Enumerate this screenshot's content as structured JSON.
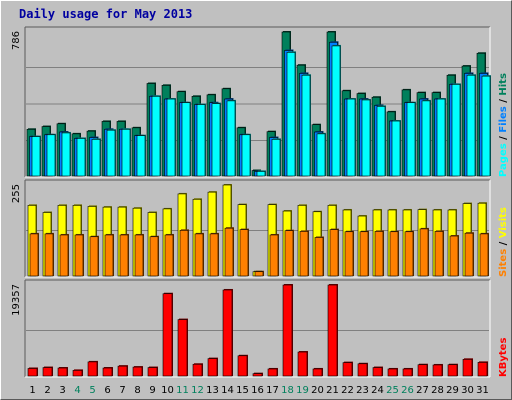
{
  "title": "Daily usage for May 2013",
  "colors": {
    "hits": "#00805c",
    "files": "#0080ff",
    "pages": "#00ffff",
    "visits": "#ffff00",
    "sites": "#ff8000",
    "kbytes": "#ff0000",
    "weekend_label": "#00805c",
    "weekday_label": "#000000",
    "title": "#0000a0",
    "panel_bg": "#c0c0c0"
  },
  "chart_data": [
    {
      "type": "bar",
      "ylabel_max": "786",
      "ylim": [
        0,
        786
      ],
      "legend_right": [
        "Pages",
        "/",
        "Files",
        "/",
        "Hits"
      ],
      "categories": [
        "1",
        "2",
        "3",
        "4",
        "5",
        "6",
        "7",
        "8",
        "9",
        "10",
        "11",
        "12",
        "13",
        "14",
        "15",
        "16",
        "17",
        "18",
        "19",
        "20",
        "21",
        "22",
        "23",
        "24",
        "25",
        "26",
        "27",
        "28",
        "29",
        "30",
        "31"
      ],
      "series": [
        {
          "name": "Hits",
          "values": [
            255,
            270,
            285,
            230,
            245,
            298,
            298,
            263,
            505,
            495,
            460,
            435,
            443,
            476,
            263,
            30,
            242,
            786,
            605,
            280,
            786,
            465,
            450,
            430,
            350,
            470,
            455,
            455,
            550,
            600,
            670
          ]
        },
        {
          "name": "Files",
          "values": [
            215,
            225,
            240,
            205,
            210,
            255,
            255,
            220,
            435,
            420,
            400,
            390,
            400,
            420,
            225,
            25,
            210,
            685,
            560,
            240,
            730,
            420,
            420,
            385,
            300,
            400,
            420,
            420,
            500,
            560,
            560
          ]
        },
        {
          "name": "Pages",
          "values": [
            215,
            225,
            235,
            205,
            200,
            250,
            255,
            220,
            435,
            420,
            400,
            390,
            395,
            410,
            225,
            25,
            200,
            675,
            550,
            230,
            710,
            420,
            415,
            380,
            300,
            400,
            410,
            420,
            500,
            550,
            545
          ]
        }
      ]
    },
    {
      "type": "bar",
      "ylabel_max": "255",
      "ylim": [
        0,
        255
      ],
      "legend_right": [
        "Sites",
        "/",
        "Visits"
      ],
      "categories": [
        "1",
        "2",
        "3",
        "4",
        "5",
        "6",
        "7",
        "8",
        "9",
        "10",
        "11",
        "12",
        "13",
        "14",
        "15",
        "16",
        "17",
        "18",
        "19",
        "20",
        "21",
        "22",
        "23",
        "24",
        "25",
        "26",
        "27",
        "28",
        "29",
        "30",
        "31"
      ],
      "series": [
        {
          "name": "Visits",
          "values": [
            198,
            178,
            198,
            198,
            195,
            193,
            193,
            190,
            178,
            188,
            230,
            215,
            235,
            255,
            200,
            12,
            200,
            182,
            198,
            180,
            198,
            185,
            168,
            185,
            185,
            185,
            186,
            185,
            185,
            203,
            204
          ]
        },
        {
          "name": "Sites",
          "values": [
            118,
            118,
            115,
            115,
            110,
            115,
            115,
            115,
            110,
            115,
            128,
            118,
            118,
            134,
            130,
            12,
            115,
            127,
            125,
            108,
            130,
            124,
            124,
            125,
            124,
            124,
            132,
            125,
            112,
            120,
            118
          ]
        }
      ]
    },
    {
      "type": "bar",
      "ylabel_max": "19357",
      "ylim": [
        0,
        19357
      ],
      "legend_right": [
        "KBytes"
      ],
      "categories": [
        "1",
        "2",
        "3",
        "4",
        "5",
        "6",
        "7",
        "8",
        "9",
        "10",
        "11",
        "12",
        "13",
        "14",
        "15",
        "16",
        "17",
        "18",
        "19",
        "20",
        "21",
        "22",
        "23",
        "24",
        "25",
        "26",
        "27",
        "28",
        "29",
        "30",
        "31"
      ],
      "series": [
        {
          "name": "KBytes",
          "values": [
            1600,
            1800,
            1700,
            1200,
            3000,
            1700,
            2100,
            1900,
            1800,
            17500,
            12000,
            2500,
            3700,
            18300,
            4300,
            500,
            1500,
            19357,
            5100,
            1500,
            19357,
            2850,
            2600,
            1800,
            1500,
            1500,
            2400,
            2350,
            2400,
            3550,
            2900
          ]
        }
      ]
    }
  ]
}
